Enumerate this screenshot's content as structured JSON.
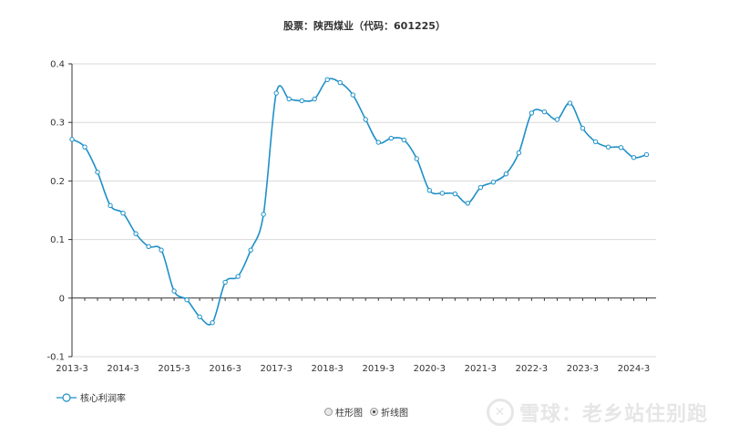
{
  "title": "股票：陕西煤业（代码：601225）",
  "legend": {
    "label": "核心利润率"
  },
  "toggles": [
    {
      "label": "柱形图",
      "selected": false
    },
    {
      "label": "折线图",
      "selected": true
    }
  ],
  "watermark": {
    "text": "雪球：老乡站住别跑"
  },
  "colors": {
    "line": "#1e90c8",
    "grid": "#d9d9d9",
    "axis": "#333333"
  },
  "chart_data": {
    "type": "line",
    "ylim": [
      -0.1,
      0.4
    ],
    "yticks": [
      "-0.1",
      "0",
      "0.1",
      "0.2",
      "0.3",
      "0.4"
    ],
    "ytick_values": [
      -0.1,
      0,
      0.1,
      0.2,
      0.3,
      0.4
    ],
    "x_range": [
      0,
      45.75
    ],
    "xticks": [
      "2013-3",
      "2014-3",
      "2015-3",
      "2016-3",
      "2017-3",
      "2018-3",
      "2019-3",
      "2020-3",
      "2021-3",
      "2022-3",
      "2023-3",
      "2024-3"
    ],
    "xtick_positions": [
      0,
      4,
      8,
      12,
      16,
      20,
      24,
      28,
      32,
      36,
      40,
      44
    ],
    "grid": true,
    "series": [
      {
        "name": "核心利润率",
        "x": [
          0,
          1,
          2,
          3,
          4,
          5,
          6,
          7,
          8,
          9,
          10,
          11,
          12,
          13,
          14,
          15,
          16,
          17,
          18,
          19,
          20,
          21,
          22,
          23,
          24,
          25,
          26,
          27,
          28,
          29,
          30,
          31,
          32,
          33,
          34,
          35,
          36,
          37,
          38,
          39,
          40,
          41,
          42,
          43,
          44,
          45
        ],
        "values": [
          0.271,
          0.258,
          0.215,
          0.158,
          0.145,
          0.11,
          0.088,
          0.082,
          0.012,
          -0.003,
          -0.032,
          -0.042,
          0.027,
          0.037,
          0.082,
          0.143,
          0.35,
          0.34,
          0.337,
          0.34,
          0.373,
          0.368,
          0.347,
          0.305,
          0.266,
          0.273,
          0.27,
          0.238,
          0.184,
          0.179,
          0.178,
          0.162,
          0.189,
          0.198,
          0.212,
          0.248,
          0.316,
          0.318,
          0.305,
          0.333,
          0.29,
          0.267,
          0.258,
          0.257,
          0.24,
          0.245
        ]
      }
    ]
  }
}
